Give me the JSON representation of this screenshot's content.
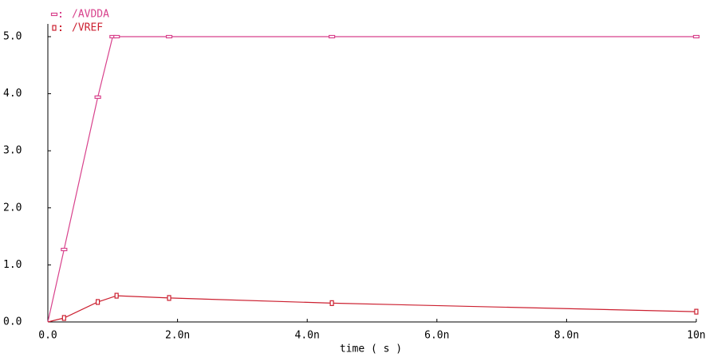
{
  "chart_data": {
    "type": "line",
    "x_label": "time ( s )",
    "xlim": [
      0,
      1e-08
    ],
    "xticks": [
      {
        "value": 0,
        "label": "0.0"
      },
      {
        "value": 2e-09,
        "label": "2.0n"
      },
      {
        "value": 4e-09,
        "label": "4.0n"
      },
      {
        "value": 6e-09,
        "label": "6.0n"
      },
      {
        "value": 8e-09,
        "label": "8.0n"
      },
      {
        "value": 1e-08,
        "label": "10n"
      }
    ],
    "ylim": [
      0,
      5
    ],
    "yticks": [
      {
        "value": 0,
        "label": "0.0"
      },
      {
        "value": 1,
        "label": "1.0"
      },
      {
        "value": 2,
        "label": "2.0"
      },
      {
        "value": 3,
        "label": "3.0"
      },
      {
        "value": 4,
        "label": "4.0"
      },
      {
        "value": 5,
        "label": "5.0"
      }
    ],
    "legend": "top-left",
    "series": [
      {
        "name": "/AVDDA",
        "color": "#d8428c",
        "x": [
          0,
          2.5e-10,
          7.7e-10,
          1e-09,
          1.06e-09,
          1.87e-09,
          4.38e-09,
          1e-08
        ],
        "values": [
          0,
          1.27,
          3.94,
          5,
          5,
          5,
          5,
          5
        ]
      },
      {
        "name": "/VREF",
        "color": "#cc2030",
        "x": [
          0,
          2.5e-10,
          7.7e-10,
          1.06e-09,
          1.87e-09,
          4.38e-09,
          1e-08
        ],
        "values": [
          0,
          0.07,
          0.35,
          0.46,
          0.42,
          0.33,
          0.18
        ]
      }
    ]
  }
}
